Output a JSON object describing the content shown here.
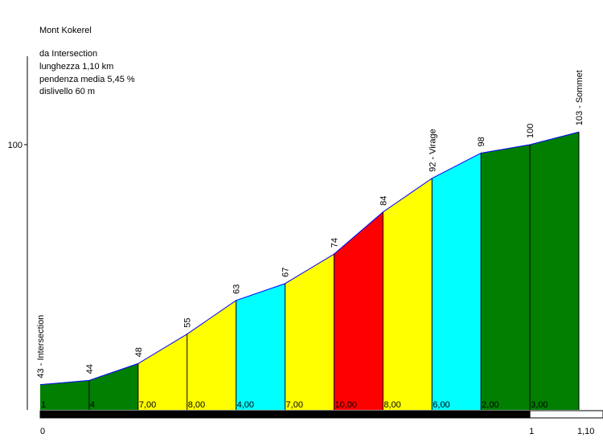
{
  "title": "Mont Kokerel",
  "info": {
    "from": "da Intersection",
    "length": "lunghezza 1,10 km",
    "gradient": "pendenza media 5,45 %",
    "elevation_gain": "dislivello 60 m"
  },
  "chart_data": {
    "type": "area",
    "title": "Mont Kokerel",
    "xlabel": "",
    "ylabel": "",
    "xlim": [
      0,
      1.1
    ],
    "ylim": [
      37,
      121
    ],
    "y_ticks": [
      {
        "value": 100,
        "label": "100"
      }
    ],
    "x_ticks": [
      {
        "value": 0,
        "label": "0"
      },
      {
        "value": 1,
        "label": "1"
      },
      {
        "value": 1.1,
        "label": "1,10"
      }
    ],
    "km_bar": [
      {
        "from": 0,
        "to": 1,
        "fill": "#000000"
      },
      {
        "from": 1,
        "to": 1.1,
        "fill": "#ffffff"
      }
    ],
    "points": [
      {
        "x": 0.0,
        "y": 43,
        "label": "43 - Intersection"
      },
      {
        "x": 0.1,
        "y": 44,
        "label": "44"
      },
      {
        "x": 0.2,
        "y": 48,
        "label": "48"
      },
      {
        "x": 0.3,
        "y": 55,
        "label": "55"
      },
      {
        "x": 0.4,
        "y": 63,
        "label": "63"
      },
      {
        "x": 0.5,
        "y": 67,
        "label": "67"
      },
      {
        "x": 0.6,
        "y": 74,
        "label": "74"
      },
      {
        "x": 0.7,
        "y": 84,
        "label": "84"
      },
      {
        "x": 0.8,
        "y": 92,
        "label": "92 - Virage"
      },
      {
        "x": 0.9,
        "y": 98,
        "label": "98"
      },
      {
        "x": 1.0,
        "y": 100,
        "label": "100"
      },
      {
        "x": 1.1,
        "y": 103,
        "label": "103 - Sommet"
      }
    ],
    "segments": [
      {
        "from": 0.0,
        "to": 0.1,
        "label": "1",
        "color": "#007f00"
      },
      {
        "from": 0.1,
        "to": 0.2,
        "label": "4",
        "color": "#007f00"
      },
      {
        "from": 0.2,
        "to": 0.3,
        "label": "7,00",
        "color": "#ffff00"
      },
      {
        "from": 0.3,
        "to": 0.4,
        "label": "8,00",
        "color": "#ffff00"
      },
      {
        "from": 0.4,
        "to": 0.5,
        "label": "4,00",
        "color": "#00ffff"
      },
      {
        "from": 0.5,
        "to": 0.6,
        "label": "7,00",
        "color": "#ffff00"
      },
      {
        "from": 0.6,
        "to": 0.7,
        "label": "10,00",
        "color": "#ff0000"
      },
      {
        "from": 0.7,
        "to": 0.8,
        "label": "8,00",
        "color": "#ffff00"
      },
      {
        "from": 0.8,
        "to": 0.9,
        "label": "6,00",
        "color": "#00ffff"
      },
      {
        "from": 0.9,
        "to": 1.0,
        "label": "2,00",
        "color": "#007f00"
      },
      {
        "from": 1.0,
        "to": 1.1,
        "label": "3,00",
        "color": "#007f00"
      }
    ]
  }
}
